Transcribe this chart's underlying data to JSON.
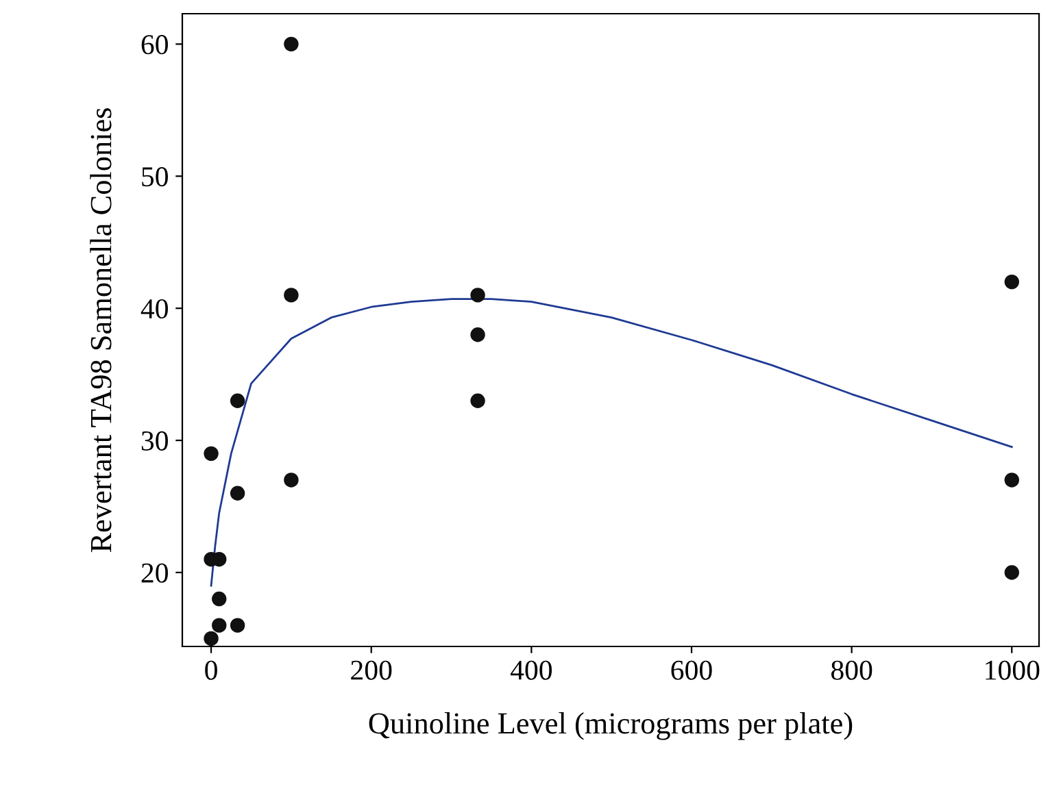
{
  "chart_data": {
    "type": "scatter",
    "xlabel": "Quinoline Level (micrograms per plate)",
    "ylabel": "Revertant TA98 Samonella Colonies",
    "series": [
      {
        "color": "#111111",
        "marker": "circle",
        "x": [
          0,
          0,
          0,
          10,
          10,
          10,
          33,
          33,
          33,
          100,
          100,
          100,
          333,
          333,
          333,
          1000,
          1000,
          1000
        ],
        "values": [
          15,
          21,
          29,
          16,
          18,
          21,
          16,
          26,
          33,
          27,
          41,
          60,
          33,
          38,
          41,
          20,
          27,
          42
        ]
      },
      {
        "type": "line",
        "color": "#1f3a93",
        "marker": "none",
        "x": [
          0,
          5,
          10,
          25,
          50,
          100,
          150,
          200,
          250,
          300,
          350,
          400,
          500,
          600,
          700,
          800,
          900,
          1000
        ],
        "values": [
          19,
          22,
          24.5,
          29,
          34.3,
          37.7,
          39.3,
          40.1,
          40.5,
          40.7,
          40.7,
          40.5,
          39.3,
          37.6,
          35.7,
          33.5,
          31.5,
          29.5
        ]
      }
    ],
    "xlim": [
      -36,
      1034
    ],
    "ylim": [
      14.4,
      62.3
    ],
    "xticks": [
      0,
      200,
      400,
      600,
      800,
      1000
    ],
    "yticks": [
      20,
      30,
      40,
      50,
      60
    ],
    "grid": false,
    "legend": false
  }
}
